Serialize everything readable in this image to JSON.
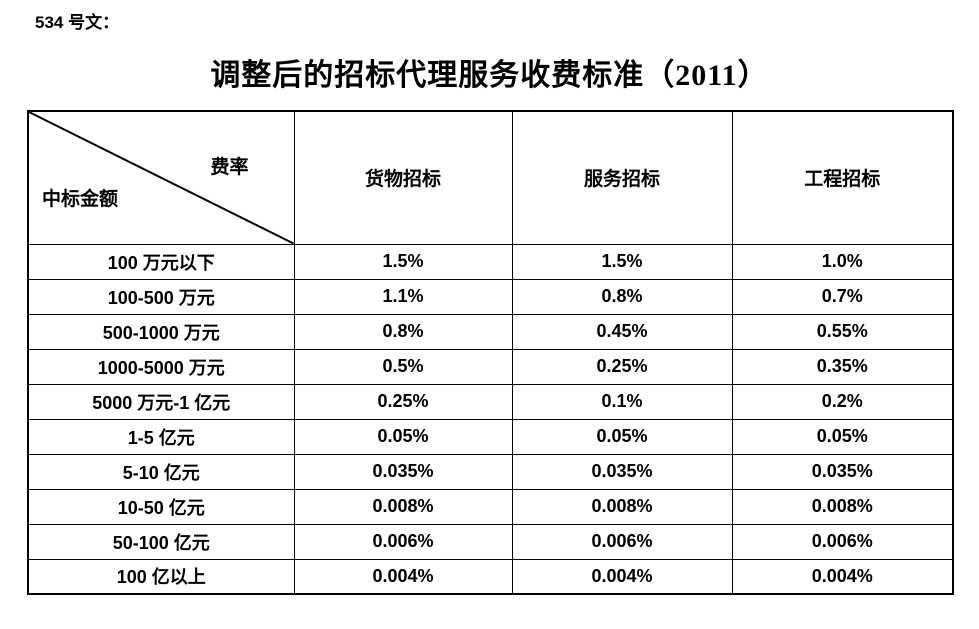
{
  "page": {
    "doc_label": "534 号文：",
    "title": "调整后的招标代理服务收费标准（2011）"
  },
  "table": {
    "corner": {
      "top_right_label": "费率",
      "bottom_left_label": "中标金额"
    },
    "columns": [
      "货物招标",
      "服务招标",
      "工程招标"
    ],
    "rows": [
      {
        "label": "100 万元以下",
        "values": [
          "1.5%",
          "1.5%",
          "1.0%"
        ]
      },
      {
        "label": "100-500 万元",
        "values": [
          "1.1%",
          "0.8%",
          "0.7%"
        ]
      },
      {
        "label": "500-1000 万元",
        "values": [
          "0.8%",
          "0.45%",
          "0.55%"
        ]
      },
      {
        "label": "1000-5000 万元",
        "values": [
          "0.5%",
          "0.25%",
          "0.35%"
        ]
      },
      {
        "label": "5000 万元-1 亿元",
        "values": [
          "0.25%",
          "0.1%",
          "0.2%"
        ]
      },
      {
        "label": "1-5 亿元",
        "values": [
          "0.05%",
          "0.05%",
          "0.05%"
        ]
      },
      {
        "label": "5-10 亿元",
        "values": [
          "0.035%",
          "0.035%",
          "0.035%"
        ]
      },
      {
        "label": "10-50 亿元",
        "values": [
          "0.008%",
          "0.008%",
          "0.008%"
        ]
      },
      {
        "label": "50-100 亿元",
        "values": [
          "0.006%",
          "0.006%",
          "0.006%"
        ]
      },
      {
        "label": "100 亿以上",
        "values": [
          "0.004%",
          "0.004%",
          "0.004%"
        ]
      }
    ],
    "line_color": "#000000"
  }
}
